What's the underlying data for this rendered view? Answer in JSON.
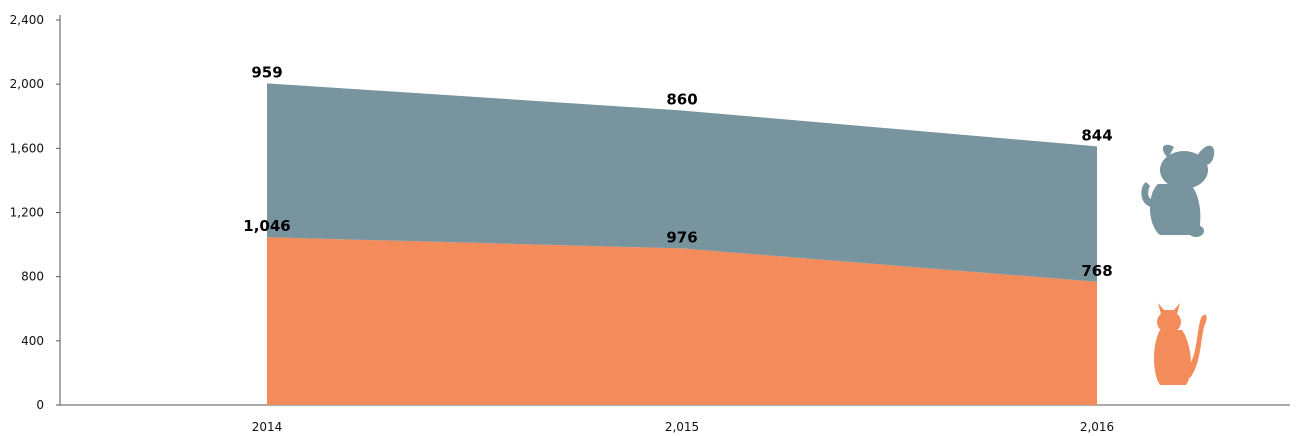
{
  "chart_data": {
    "type": "area",
    "stacked": true,
    "categories": [
      "2014",
      "2,015",
      "2,016"
    ],
    "ylim": [
      0,
      2400
    ],
    "y_ticks": [
      "0",
      "400",
      "800",
      "1,200",
      "1,600",
      "2,000",
      "2,400"
    ],
    "grid": false,
    "series": [
      {
        "name": "",
        "icon": "cat-icon",
        "color": "#f48b5b",
        "values": [
          1046,
          976,
          768
        ],
        "labels": [
          "1,046",
          "976",
          "768"
        ]
      },
      {
        "name": "",
        "icon": "dog-icon",
        "color": "#78959f",
        "values": [
          959,
          860,
          844
        ],
        "labels": [
          "959",
          "860",
          "844"
        ]
      }
    ]
  }
}
